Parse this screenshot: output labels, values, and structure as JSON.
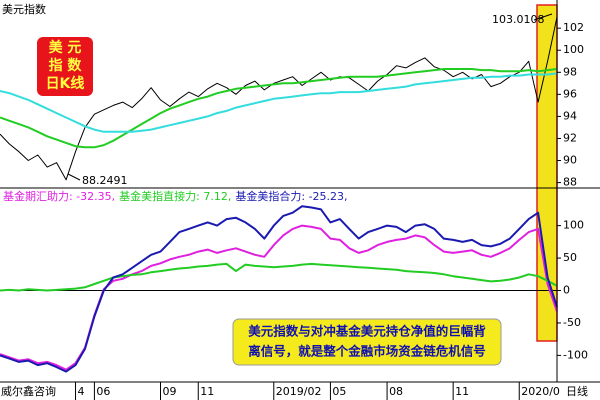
{
  "chart_data": [
    {
      "type": "line",
      "title": "美元指数",
      "ylim": [
        87.6,
        104.1
      ],
      "yticks": [
        88,
        90,
        92,
        94,
        96,
        98,
        100,
        102
      ],
      "xlim": [
        0,
        59
      ],
      "max_label": "103.0108",
      "min_label": "88.2491",
      "badge": [
        "美 元",
        "指 数",
        "日K线"
      ],
      "series": [
        {
          "color": "#000000",
          "values": [
            92.4,
            91.5,
            90.8,
            90.0,
            90.5,
            89.4,
            89.8,
            88.2491,
            90.8,
            93.0,
            94.2,
            94.6,
            95.0,
            95.3,
            94.8,
            95.6,
            96.6,
            95.5,
            94.9,
            95.6,
            96.2,
            95.8,
            96.5,
            97.0,
            96.6,
            96.0,
            96.8,
            97.2,
            96.4,
            97.0,
            97.3,
            97.6,
            96.8,
            97.4,
            98.0,
            97.3,
            97.6,
            97.5,
            96.9,
            96.3,
            97.2,
            97.8,
            98.6,
            98.4,
            98.9,
            99.3,
            98.5,
            98.2,
            97.6,
            98.0,
            97.4,
            97.8,
            96.7,
            97.0,
            97.6,
            98.0,
            99.0,
            95.3,
            99.0,
            103.0108
          ]
        },
        {
          "color": "#22cc22",
          "values": [
            93.9,
            93.6,
            93.3,
            93.0,
            92.6,
            92.2,
            91.9,
            91.6,
            91.3,
            91.2,
            91.2,
            91.4,
            91.8,
            92.3,
            92.8,
            93.3,
            93.8,
            94.3,
            94.7,
            95.0,
            95.3,
            95.6,
            95.8,
            96.1,
            96.3,
            96.5,
            96.6,
            96.7,
            96.8,
            96.9,
            97.0,
            97.0,
            97.1,
            97.2,
            97.3,
            97.4,
            97.5,
            97.6,
            97.6,
            97.6,
            97.6,
            97.7,
            97.8,
            97.9,
            98.0,
            98.1,
            98.2,
            98.3,
            98.3,
            98.3,
            98.3,
            98.2,
            98.2,
            98.1,
            98.1,
            98.1,
            98.2,
            98.1,
            98.2,
            98.3
          ]
        },
        {
          "color": "#33dddd",
          "values": [
            96.3,
            96.1,
            95.8,
            95.5,
            95.1,
            94.7,
            94.3,
            93.9,
            93.5,
            93.1,
            92.8,
            92.6,
            92.6,
            92.6,
            92.6,
            92.7,
            92.8,
            93.0,
            93.2,
            93.4,
            93.6,
            93.8,
            94.0,
            94.3,
            94.5,
            94.8,
            95.0,
            95.2,
            95.4,
            95.6,
            95.7,
            95.8,
            95.9,
            96.0,
            96.1,
            96.1,
            96.2,
            96.2,
            96.2,
            96.3,
            96.4,
            96.5,
            96.6,
            96.7,
            96.9,
            97.0,
            97.1,
            97.2,
            97.3,
            97.4,
            97.5,
            97.5,
            97.6,
            97.6,
            97.7,
            97.7,
            97.8,
            97.8,
            97.8,
            97.9
          ]
        }
      ]
    },
    {
      "type": "line",
      "ylim": [
        -141,
        158
      ],
      "yticks": [
        -100,
        -50,
        0,
        50,
        100
      ],
      "xlim": [
        0,
        59
      ],
      "xticks": [
        {
          "value": 8,
          "label": "4"
        },
        {
          "value": 10,
          "label": "06"
        },
        {
          "value": 17,
          "label": "09"
        },
        {
          "value": 21,
          "label": "11"
        },
        {
          "value": 29,
          "label": "2019/02"
        },
        {
          "value": 35,
          "label": "05"
        },
        {
          "value": 41,
          "label": "08"
        },
        {
          "value": 48,
          "label": "11"
        },
        {
          "value": 55,
          "label": "2020/0"
        }
      ],
      "source": "威尔鑫咨询",
      "period": "日线",
      "annotation": [
        "美元指数与对冲基金美元持仓净值的巨幅背",
        "离信号，就是整个金融市场资金链危机信号"
      ],
      "series": [
        {
          "name": "基金期汇助力: -32.35,",
          "color": "#e020e0",
          "values": [
            -98,
            -103,
            -108,
            -106,
            -112,
            -110,
            -115,
            -122,
            -112,
            -88,
            -38,
            2,
            15,
            18,
            25,
            30,
            38,
            42,
            48,
            52,
            55,
            60,
            63,
            58,
            62,
            65,
            60,
            55,
            52,
            70,
            85,
            95,
            100,
            98,
            95,
            80,
            78,
            65,
            58,
            62,
            70,
            75,
            78,
            80,
            85,
            82,
            70,
            60,
            58,
            60,
            62,
            55,
            52,
            58,
            65,
            78,
            90,
            95,
            10,
            -32.35
          ]
        },
        {
          "name": "基金美指直接力: 7.12,",
          "color": "#22cc22",
          "values": [
            0,
            1,
            0,
            2,
            1,
            0,
            1,
            2,
            3,
            5,
            10,
            15,
            20,
            22,
            24,
            25,
            28,
            30,
            32,
            34,
            35,
            37,
            38,
            40,
            41,
            30,
            40,
            38,
            37,
            36,
            37,
            38,
            40,
            41,
            40,
            39,
            38,
            37,
            36,
            35,
            34,
            33,
            32,
            30,
            29,
            28,
            27,
            25,
            22,
            20,
            18,
            16,
            14,
            15,
            17,
            20,
            25,
            22,
            15,
            7.12
          ]
        },
        {
          "name": "基金美指合力: -25.23,",
          "color": "#1a1ab0",
          "values": [
            -100,
            -105,
            -110,
            -108,
            -115,
            -112,
            -118,
            -125,
            -115,
            -90,
            -40,
            0,
            20,
            25,
            35,
            45,
            55,
            60,
            75,
            90,
            95,
            100,
            105,
            100,
            110,
            112,
            105,
            95,
            80,
            100,
            115,
            120,
            130,
            128,
            125,
            105,
            110,
            95,
            80,
            90,
            95,
            100,
            98,
            90,
            100,
            102,
            95,
            80,
            78,
            75,
            78,
            70,
            68,
            72,
            80,
            95,
            110,
            120,
            20,
            -25.23
          ]
        }
      ]
    }
  ]
}
